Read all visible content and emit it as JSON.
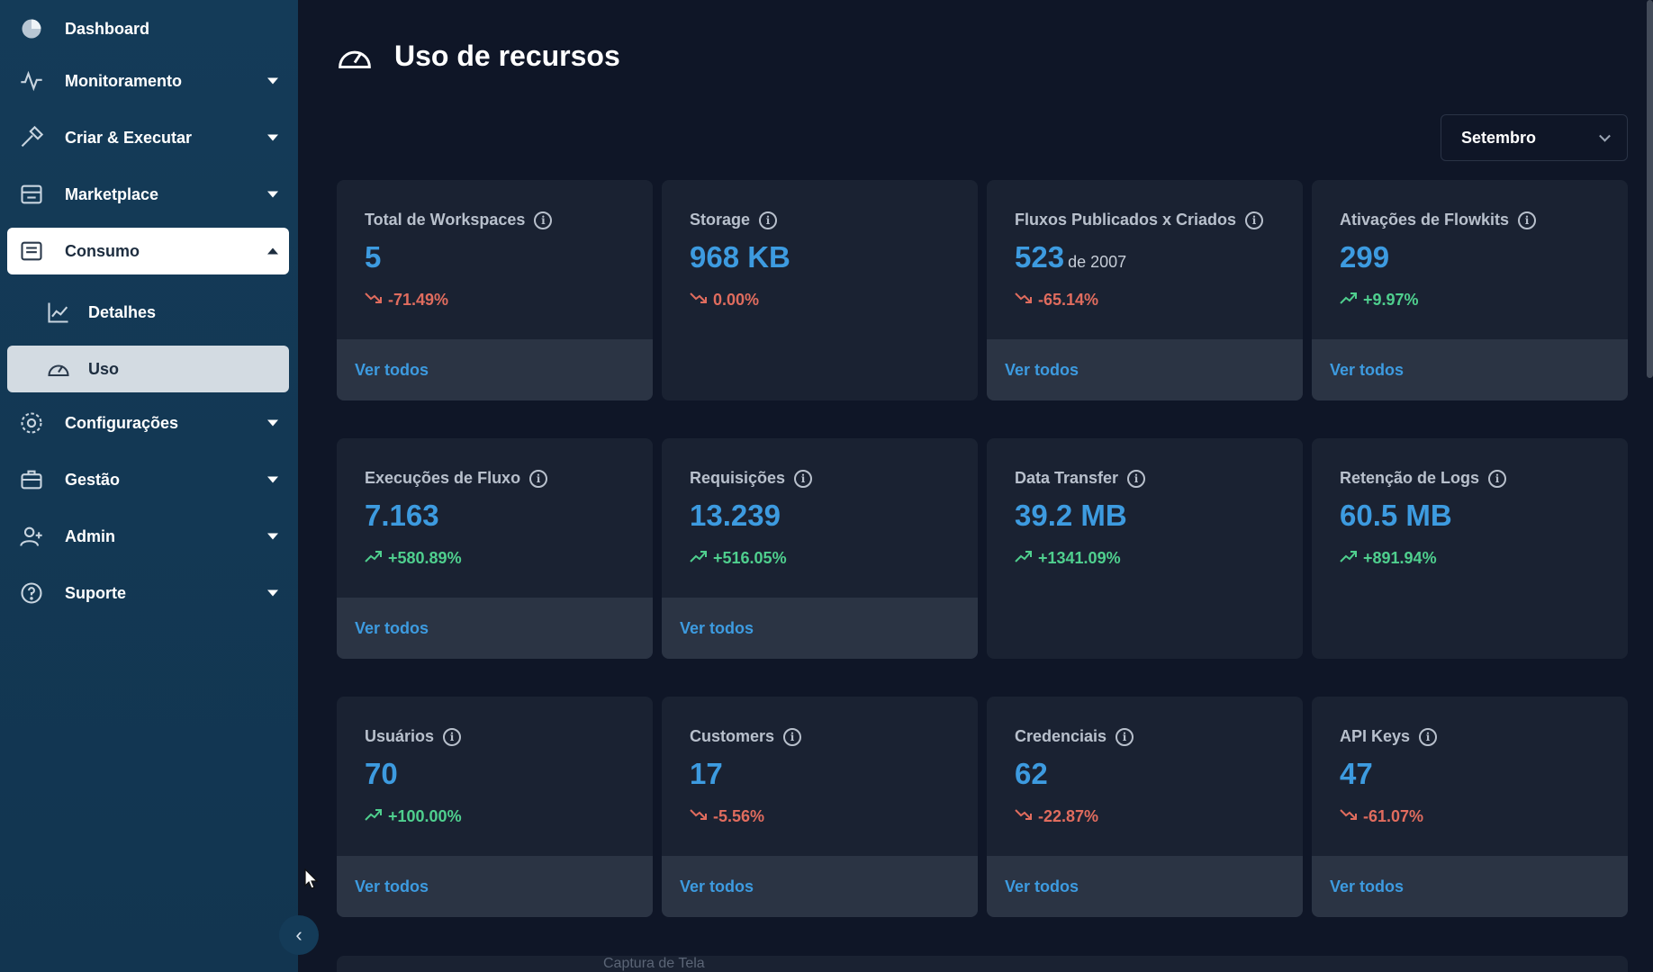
{
  "sidebar": {
    "items": [
      {
        "label": "Dashboard",
        "icon": "dashboard-pie-icon"
      },
      {
        "label": "Monitoramento",
        "icon": "activity-icon"
      },
      {
        "label": "Criar & Executar",
        "icon": "hammer-icon"
      },
      {
        "label": "Marketplace",
        "icon": "store-icon"
      },
      {
        "label": "Consumo",
        "icon": "list-icon"
      },
      {
        "label": "Configurações",
        "icon": "gear-icon"
      },
      {
        "label": "Gestão",
        "icon": "briefcase-icon"
      },
      {
        "label": "Admin",
        "icon": "user-plus-icon"
      },
      {
        "label": "Suporte",
        "icon": "help-icon"
      }
    ],
    "sub_items": [
      {
        "label": "Detalhes",
        "icon": "line-chart-icon"
      },
      {
        "label": "Uso",
        "icon": "gauge-icon"
      }
    ]
  },
  "header": {
    "title": "Uso de recursos",
    "icon": "gauge-icon"
  },
  "filter": {
    "month": "Setembro"
  },
  "cards": [
    {
      "title": "Total de Workspaces",
      "value": "5",
      "suffix": "",
      "delta": "-71.49%",
      "trend": "down",
      "link": "Ver todos"
    },
    {
      "title": "Storage",
      "value": "968 KB",
      "suffix": "",
      "delta": "0.00%",
      "trend": "down",
      "link": ""
    },
    {
      "title": "Fluxos Publicados x Criados",
      "value": "523",
      "suffix": "de 2007",
      "delta": "-65.14%",
      "trend": "down",
      "link": "Ver todos"
    },
    {
      "title": "Ativações de Flowkits",
      "value": "299",
      "suffix": "",
      "delta": "+9.97%",
      "trend": "up",
      "link": "Ver todos"
    },
    {
      "title": "Execuções de Fluxo",
      "value": "7.163",
      "suffix": "",
      "delta": "+580.89%",
      "trend": "up",
      "link": "Ver todos"
    },
    {
      "title": "Requisições",
      "value": "13.239",
      "suffix": "",
      "delta": "+516.05%",
      "trend": "up",
      "link": "Ver todos"
    },
    {
      "title": "Data Transfer",
      "value": "39.2 MB",
      "suffix": "",
      "delta": "+1341.09%",
      "trend": "up",
      "link": ""
    },
    {
      "title": "Retenção de Logs",
      "value": "60.5 MB",
      "suffix": "",
      "delta": "+891.94%",
      "trend": "up",
      "link": ""
    },
    {
      "title": "Usuários",
      "value": "70",
      "suffix": "",
      "delta": "+100.00%",
      "trend": "up",
      "link": "Ver todos"
    },
    {
      "title": "Customers",
      "value": "17",
      "suffix": "",
      "delta": "-5.56%",
      "trend": "down",
      "link": "Ver todos"
    },
    {
      "title": "Credenciais",
      "value": "62",
      "suffix": "",
      "delta": "-22.87%",
      "trend": "down",
      "link": "Ver todos"
    },
    {
      "title": "API Keys",
      "value": "47",
      "suffix": "",
      "delta": "-61.07%",
      "trend": "down",
      "link": "Ver todos"
    }
  ],
  "overlay": {
    "capture_label": "Captura de Tela"
  },
  "colors": {
    "accent": "#3d9be0",
    "up": "#4fcf8e",
    "down": "#e06c5e",
    "sidebar": "#143b58",
    "background": "#0f1627",
    "card": "#1a2232",
    "card_footer": "#2b3444"
  }
}
